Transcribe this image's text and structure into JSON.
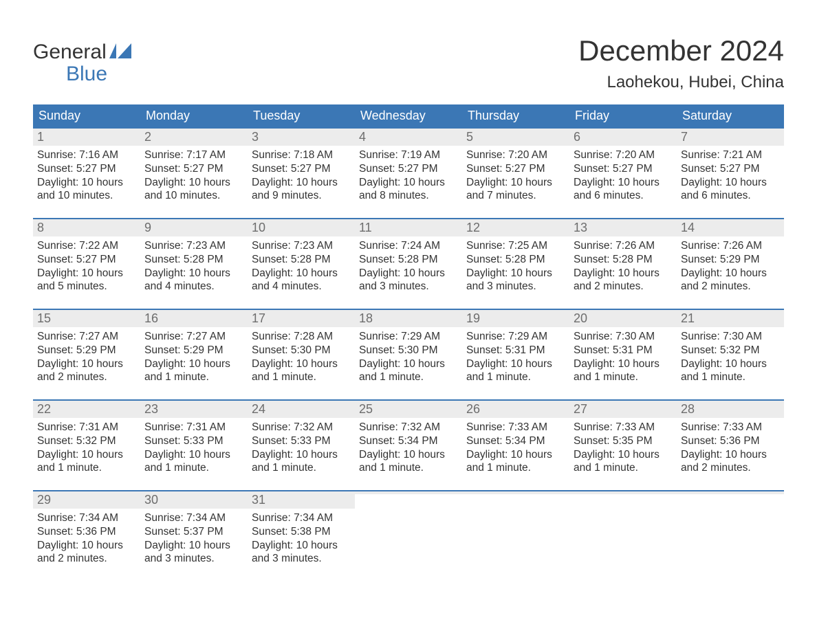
{
  "logo": {
    "line1": "General",
    "line2": "Blue",
    "flag_color": "#3b77b5"
  },
  "title": "December 2024",
  "location": "Laohekou, Hubei, China",
  "colors": {
    "header_bg": "#3b77b5",
    "header_text": "#ffffff",
    "daynum_bg": "#ececec",
    "daynum_text": "#6d6d6d",
    "row_border": "#3b77b5",
    "body_text": "#333333",
    "page_bg": "#ffffff"
  },
  "weekdays": [
    "Sunday",
    "Monday",
    "Tuesday",
    "Wednesday",
    "Thursday",
    "Friday",
    "Saturday"
  ],
  "weeks": [
    [
      {
        "n": "1",
        "sr": "Sunrise: 7:16 AM",
        "ss": "Sunset: 5:27 PM",
        "d1": "Daylight: 10 hours",
        "d2": "and 10 minutes."
      },
      {
        "n": "2",
        "sr": "Sunrise: 7:17 AM",
        "ss": "Sunset: 5:27 PM",
        "d1": "Daylight: 10 hours",
        "d2": "and 10 minutes."
      },
      {
        "n": "3",
        "sr": "Sunrise: 7:18 AM",
        "ss": "Sunset: 5:27 PM",
        "d1": "Daylight: 10 hours",
        "d2": "and 9 minutes."
      },
      {
        "n": "4",
        "sr": "Sunrise: 7:19 AM",
        "ss": "Sunset: 5:27 PM",
        "d1": "Daylight: 10 hours",
        "d2": "and 8 minutes."
      },
      {
        "n": "5",
        "sr": "Sunrise: 7:20 AM",
        "ss": "Sunset: 5:27 PM",
        "d1": "Daylight: 10 hours",
        "d2": "and 7 minutes."
      },
      {
        "n": "6",
        "sr": "Sunrise: 7:20 AM",
        "ss": "Sunset: 5:27 PM",
        "d1": "Daylight: 10 hours",
        "d2": "and 6 minutes."
      },
      {
        "n": "7",
        "sr": "Sunrise: 7:21 AM",
        "ss": "Sunset: 5:27 PM",
        "d1": "Daylight: 10 hours",
        "d2": "and 6 minutes."
      }
    ],
    [
      {
        "n": "8",
        "sr": "Sunrise: 7:22 AM",
        "ss": "Sunset: 5:27 PM",
        "d1": "Daylight: 10 hours",
        "d2": "and 5 minutes."
      },
      {
        "n": "9",
        "sr": "Sunrise: 7:23 AM",
        "ss": "Sunset: 5:28 PM",
        "d1": "Daylight: 10 hours",
        "d2": "and 4 minutes."
      },
      {
        "n": "10",
        "sr": "Sunrise: 7:23 AM",
        "ss": "Sunset: 5:28 PM",
        "d1": "Daylight: 10 hours",
        "d2": "and 4 minutes."
      },
      {
        "n": "11",
        "sr": "Sunrise: 7:24 AM",
        "ss": "Sunset: 5:28 PM",
        "d1": "Daylight: 10 hours",
        "d2": "and 3 minutes."
      },
      {
        "n": "12",
        "sr": "Sunrise: 7:25 AM",
        "ss": "Sunset: 5:28 PM",
        "d1": "Daylight: 10 hours",
        "d2": "and 3 minutes."
      },
      {
        "n": "13",
        "sr": "Sunrise: 7:26 AM",
        "ss": "Sunset: 5:28 PM",
        "d1": "Daylight: 10 hours",
        "d2": "and 2 minutes."
      },
      {
        "n": "14",
        "sr": "Sunrise: 7:26 AM",
        "ss": "Sunset: 5:29 PM",
        "d1": "Daylight: 10 hours",
        "d2": "and 2 minutes."
      }
    ],
    [
      {
        "n": "15",
        "sr": "Sunrise: 7:27 AM",
        "ss": "Sunset: 5:29 PM",
        "d1": "Daylight: 10 hours",
        "d2": "and 2 minutes."
      },
      {
        "n": "16",
        "sr": "Sunrise: 7:27 AM",
        "ss": "Sunset: 5:29 PM",
        "d1": "Daylight: 10 hours",
        "d2": "and 1 minute."
      },
      {
        "n": "17",
        "sr": "Sunrise: 7:28 AM",
        "ss": "Sunset: 5:30 PM",
        "d1": "Daylight: 10 hours",
        "d2": "and 1 minute."
      },
      {
        "n": "18",
        "sr": "Sunrise: 7:29 AM",
        "ss": "Sunset: 5:30 PM",
        "d1": "Daylight: 10 hours",
        "d2": "and 1 minute."
      },
      {
        "n": "19",
        "sr": "Sunrise: 7:29 AM",
        "ss": "Sunset: 5:31 PM",
        "d1": "Daylight: 10 hours",
        "d2": "and 1 minute."
      },
      {
        "n": "20",
        "sr": "Sunrise: 7:30 AM",
        "ss": "Sunset: 5:31 PM",
        "d1": "Daylight: 10 hours",
        "d2": "and 1 minute."
      },
      {
        "n": "21",
        "sr": "Sunrise: 7:30 AM",
        "ss": "Sunset: 5:32 PM",
        "d1": "Daylight: 10 hours",
        "d2": "and 1 minute."
      }
    ],
    [
      {
        "n": "22",
        "sr": "Sunrise: 7:31 AM",
        "ss": "Sunset: 5:32 PM",
        "d1": "Daylight: 10 hours",
        "d2": "and 1 minute."
      },
      {
        "n": "23",
        "sr": "Sunrise: 7:31 AM",
        "ss": "Sunset: 5:33 PM",
        "d1": "Daylight: 10 hours",
        "d2": "and 1 minute."
      },
      {
        "n": "24",
        "sr": "Sunrise: 7:32 AM",
        "ss": "Sunset: 5:33 PM",
        "d1": "Daylight: 10 hours",
        "d2": "and 1 minute."
      },
      {
        "n": "25",
        "sr": "Sunrise: 7:32 AM",
        "ss": "Sunset: 5:34 PM",
        "d1": "Daylight: 10 hours",
        "d2": "and 1 minute."
      },
      {
        "n": "26",
        "sr": "Sunrise: 7:33 AM",
        "ss": "Sunset: 5:34 PM",
        "d1": "Daylight: 10 hours",
        "d2": "and 1 minute."
      },
      {
        "n": "27",
        "sr": "Sunrise: 7:33 AM",
        "ss": "Sunset: 5:35 PM",
        "d1": "Daylight: 10 hours",
        "d2": "and 1 minute."
      },
      {
        "n": "28",
        "sr": "Sunrise: 7:33 AM",
        "ss": "Sunset: 5:36 PM",
        "d1": "Daylight: 10 hours",
        "d2": "and 2 minutes."
      }
    ],
    [
      {
        "n": "29",
        "sr": "Sunrise: 7:34 AM",
        "ss": "Sunset: 5:36 PM",
        "d1": "Daylight: 10 hours",
        "d2": "and 2 minutes."
      },
      {
        "n": "30",
        "sr": "Sunrise: 7:34 AM",
        "ss": "Sunset: 5:37 PM",
        "d1": "Daylight: 10 hours",
        "d2": "and 3 minutes."
      },
      {
        "n": "31",
        "sr": "Sunrise: 7:34 AM",
        "ss": "Sunset: 5:38 PM",
        "d1": "Daylight: 10 hours",
        "d2": "and 3 minutes."
      },
      {
        "empty": true
      },
      {
        "empty": true
      },
      {
        "empty": true
      },
      {
        "empty": true
      }
    ]
  ]
}
